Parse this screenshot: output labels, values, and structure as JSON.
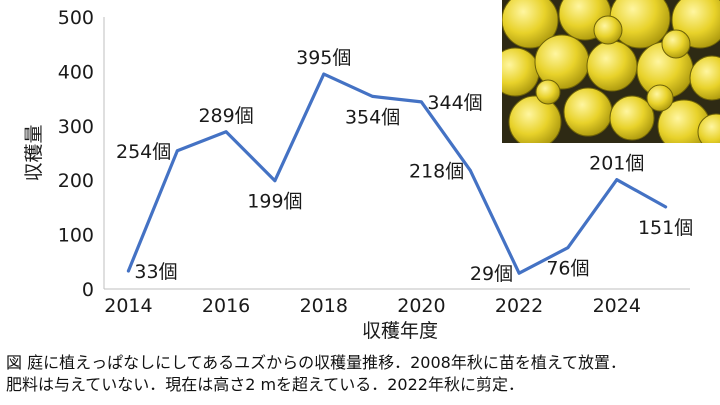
{
  "chart_data": {
    "type": "line",
    "xlabel": "収穫年度",
    "ylabel": "収穫量",
    "x": [
      2014,
      2015,
      2016,
      2017,
      2018,
      2019,
      2020,
      2021,
      2022,
      2023,
      2024,
      2025
    ],
    "series": [
      {
        "values": [
          33,
          254,
          289,
          199,
          395,
          354,
          344,
          218,
          29,
          76,
          201,
          151
        ]
      }
    ],
    "data_labels": [
      {
        "x": 2014,
        "text": "33個"
      },
      {
        "x": 2015,
        "text": "254個"
      },
      {
        "x": 2016,
        "text": "289個"
      },
      {
        "x": 2017,
        "text": "199個"
      },
      {
        "x": 2018,
        "text": "395個"
      },
      {
        "x": 2019,
        "text": "354個"
      },
      {
        "x": 2020,
        "text": "344個"
      },
      {
        "x": 2021,
        "text": "218個"
      },
      {
        "x": 2022,
        "text": "29個"
      },
      {
        "x": 2023,
        "text": "76個"
      },
      {
        "x": 2024,
        "text": "201個"
      },
      {
        "x": 2025,
        "text": "151個"
      }
    ],
    "xticks": [
      2014,
      2016,
      2018,
      2020,
      2022,
      2024
    ],
    "yticks": [
      0,
      100,
      200,
      300,
      400,
      500
    ],
    "xlim": [
      2013.5,
      2025.5
    ],
    "ylim": [
      0,
      500
    ],
    "grid": false,
    "line_color": "#4472c4",
    "photo_subject": "yuzu-fruits"
  },
  "caption": {
    "line1": "図 庭に植えっぱなしにしてあるユズからの収穫量推移．2008年秋に苗を植えて放置．",
    "line2": "肥料は与えていない．現在は高さ2 mを超えている．2022年秋に剪定．"
  }
}
